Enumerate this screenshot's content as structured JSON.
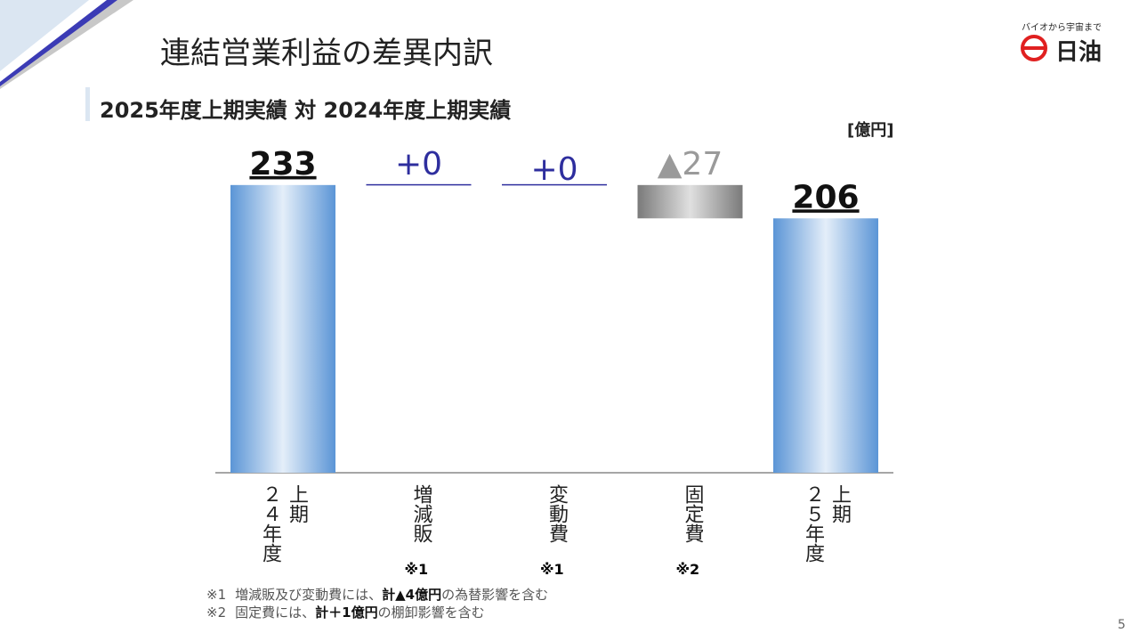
{
  "header": {
    "title": "連結営業利益の差異内訳",
    "tagline": "バイオから宇宙まで",
    "brand": "日油"
  },
  "chart_data": {
    "type": "waterfall",
    "subtitle": "2025年度上期実績  対 2024年度上期実績",
    "unit": "[億円]",
    "categories": [
      "２４年度上期",
      "増減販",
      "変動費",
      "固定費",
      "２５年度上期"
    ],
    "category_notes": [
      null,
      "※1",
      "※1",
      "※2",
      null
    ],
    "measure": [
      "total",
      "relative",
      "relative",
      "relative",
      "total"
    ],
    "values": [
      233,
      0,
      0,
      -27,
      206
    ],
    "value_labels": [
      "233",
      "+0",
      "+0",
      "▲27",
      "206"
    ],
    "colors": {
      "total": "#6a9fd8",
      "increase": "#2e2e9e",
      "decrease": "#9a9a9a"
    }
  },
  "footnotes": [
    {
      "mark": "※1",
      "parts": [
        "増減販及び変動費には、",
        "計▲4億円",
        "の為替影響を含む"
      ]
    },
    {
      "mark": "※2",
      "parts": [
        "固定費には、",
        "計＋1億円",
        "の棚卸影響を含む"
      ]
    }
  ],
  "page_number": "5"
}
